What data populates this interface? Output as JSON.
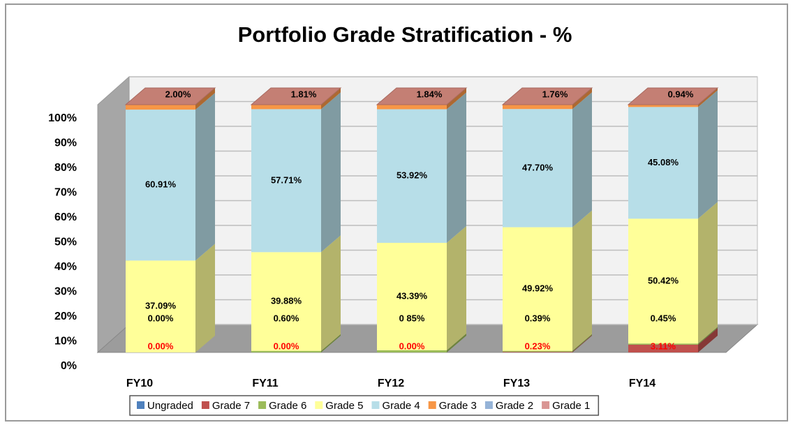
{
  "chart_data": {
    "type": "bar3d_stacked",
    "title": "Portfolio Grade Stratification - %",
    "categories": [
      "FY10",
      "FY11",
      "FY12",
      "FY13",
      "FY14"
    ],
    "series": [
      {
        "name": "Ungraded",
        "color": "#4f81bd",
        "values": [
          0,
          0,
          0,
          0,
          0
        ]
      },
      {
        "name": "Grade 7",
        "color": "#c0504d",
        "values": [
          0.0,
          0.0,
          0.0,
          0.23,
          3.11
        ],
        "value_labels": [
          "0.00%",
          "0.00%",
          "0.00%",
          "0.23%",
          "3.11%"
        ],
        "label_color": "#ff0000"
      },
      {
        "name": "Grade 6",
        "color": "#9bbb59",
        "values": [
          0.0,
          0.6,
          0.85,
          0.39,
          0.45
        ],
        "value_labels": [
          "0.00%",
          "0.60%",
          "0 85%",
          "0.39%",
          "0.45%"
        ]
      },
      {
        "name": "Grade 5",
        "color": "#ffff99",
        "values": [
          37.09,
          39.88,
          43.39,
          49.92,
          50.42
        ],
        "value_labels": [
          "37.09%",
          "39.88%",
          "43.39%",
          "49.92%",
          "50.42%"
        ]
      },
      {
        "name": "Grade 4",
        "color": "#b7dee8",
        "values": [
          60.91,
          57.71,
          53.92,
          47.7,
          45.08
        ],
        "value_labels": [
          "60.91%",
          "57.71%",
          "53.92%",
          "47.70%",
          "45.08%"
        ]
      },
      {
        "name": "Grade 3",
        "color": "#f79646",
        "values": [
          2.0,
          1.81,
          1.84,
          1.76,
          0.94
        ],
        "value_labels": [
          "2.00%",
          "1.81%",
          "1.84%",
          "1.76%",
          "0.94%"
        ]
      },
      {
        "name": "Grade 2",
        "color": "#95b3d7",
        "values": [
          0,
          0,
          0,
          0,
          0
        ]
      },
      {
        "name": "Grade 1",
        "color": "#d99694",
        "values": [
          0,
          0,
          0,
          0,
          0
        ]
      }
    ],
    "ylim": [
      0,
      100
    ],
    "yticks": [
      {
        "value": 0,
        "label": "0%"
      },
      {
        "value": 10,
        "label": "10%"
      },
      {
        "value": 20,
        "label": "20%"
      },
      {
        "value": 30,
        "label": "30%"
      },
      {
        "value": 40,
        "label": "40%"
      },
      {
        "value": 50,
        "label": "50%"
      },
      {
        "value": 60,
        "label": "60%"
      },
      {
        "value": 70,
        "label": "70%"
      },
      {
        "value": 80,
        "label": "80%"
      },
      {
        "value": 90,
        "label": "90%"
      },
      {
        "value": 100,
        "label": "100%"
      }
    ],
    "grid": true
  }
}
